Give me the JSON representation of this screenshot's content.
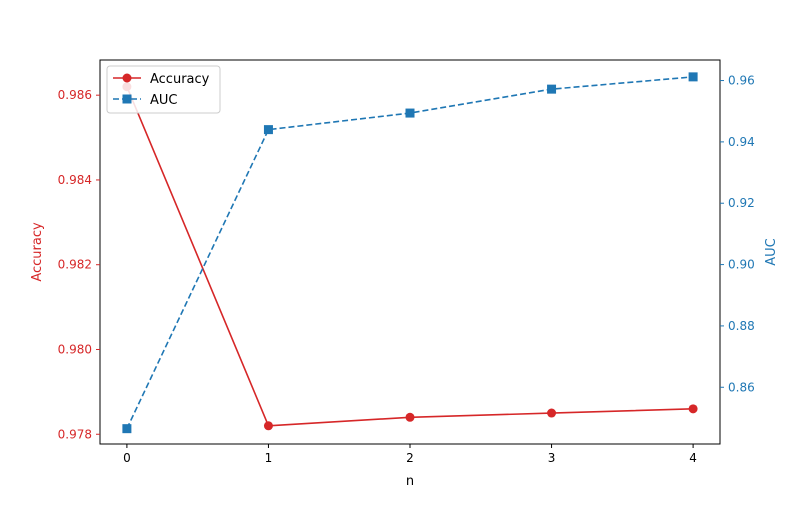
{
  "chart_data": {
    "type": "line",
    "title": "",
    "xlabel": "n",
    "x": [
      0,
      1,
      2,
      3,
      4
    ],
    "xlim": [
      -0.19,
      4.19
    ],
    "xticks": [
      "0",
      "1",
      "2",
      "3",
      "4"
    ],
    "left_axis": {
      "label": "Accuracy",
      "color": "#d62728",
      "ylim": [
        0.97777,
        0.98683
      ],
      "ticks": [
        0.978,
        0.98,
        0.982,
        0.984,
        0.986
      ],
      "tick_labels": [
        "0.978",
        "0.980",
        "0.982",
        "0.984",
        "0.986"
      ]
    },
    "right_axis": {
      "label": "AUC",
      "color": "#1f77b4",
      "ylim": [
        0.8415,
        0.9667
      ],
      "ticks": [
        0.86,
        0.88,
        0.9,
        0.92,
        0.94,
        0.96
      ],
      "tick_labels": [
        "0.86",
        "0.88",
        "0.90",
        "0.92",
        "0.94",
        "0.96"
      ]
    },
    "series": [
      {
        "name": "Accuracy",
        "axis": "left",
        "color": "#d62728",
        "marker": "circle",
        "linestyle": "solid",
        "values": [
          0.9862,
          0.9782,
          0.9784,
          0.9785,
          0.9786
        ]
      },
      {
        "name": "AUC",
        "axis": "right",
        "color": "#1f77b4",
        "marker": "square",
        "linestyle": "dashed",
        "values": [
          0.8465,
          0.944,
          0.9494,
          0.9572,
          0.9612
        ]
      }
    ],
    "legend": {
      "position": "top-left"
    },
    "grid": false
  }
}
